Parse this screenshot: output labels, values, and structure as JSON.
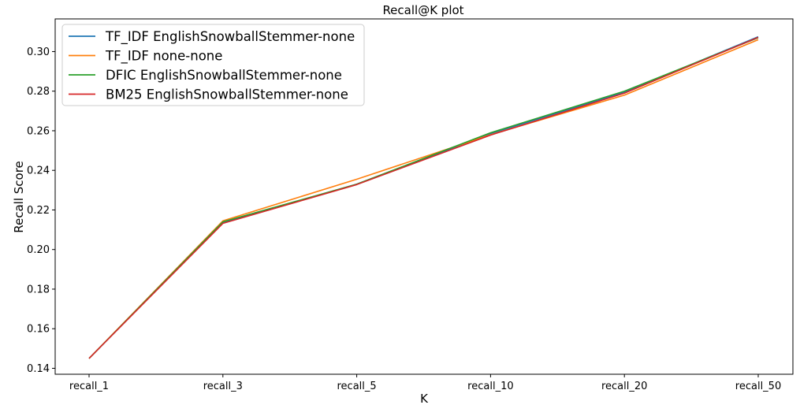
{
  "chart_data": {
    "type": "line",
    "title": "Recall@K plot",
    "xlabel": "K",
    "ylabel": "Recall Score",
    "categories": [
      "recall_1",
      "recall_3",
      "recall_5",
      "recall_10",
      "recall_20",
      "recall_50"
    ],
    "ylim": [
      0.137,
      0.3165
    ],
    "yticks": [
      0.14,
      0.16,
      0.18,
      0.2,
      0.22,
      0.24,
      0.26,
      0.28,
      0.3
    ],
    "ytick_labels": [
      "0.14",
      "0.16",
      "0.18",
      "0.20",
      "0.22",
      "0.24",
      "0.26",
      "0.28",
      "0.30"
    ],
    "grid": false,
    "legend_position": "top-left",
    "series": [
      {
        "name": "TF_IDF EnglishSnowballStemmer-none",
        "color": "#1f77b4",
        "values": [
          0.145,
          0.2135,
          0.233,
          0.2585,
          0.2795,
          0.3075
        ]
      },
      {
        "name": "TF_IDF none-none",
        "color": "#ff7f0e",
        "values": [
          0.145,
          0.2145,
          0.2355,
          0.258,
          0.278,
          0.306
        ]
      },
      {
        "name": "DFIC EnglishSnowballStemmer-none",
        "color": "#2ca02c",
        "values": [
          0.145,
          0.214,
          0.233,
          0.259,
          0.28,
          0.307
        ]
      },
      {
        "name": "BM25 EnglishSnowballStemmer-none",
        "color": "#d62728",
        "values": [
          0.145,
          0.2132,
          0.2328,
          0.2578,
          0.279,
          0.3072
        ]
      }
    ]
  }
}
